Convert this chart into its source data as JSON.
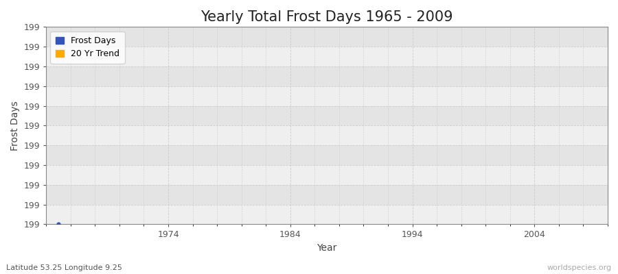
{
  "title": "Yearly Total Frost Days 1965 - 2009",
  "xlabel": "Year",
  "ylabel": "Frost Days",
  "subtitle": "Latitude 53.25 Longitude 9.25",
  "watermark": "worldspecies.org",
  "frost_days_years": [
    1965
  ],
  "frost_days_values": [
    199
  ],
  "trend_years": [],
  "trend_values": [],
  "frost_color": "#3355bb",
  "trend_color": "#ffaa00",
  "xmin": 1964,
  "xmax": 2010,
  "ymin": 199.0,
  "ymax": 199.9,
  "n_yticks": 10,
  "xticks": [
    1974,
    1984,
    1994,
    2004
  ],
  "background_color": "#efefef",
  "stripe_color": "#e4e4e4",
  "grid_color": "#cccccc",
  "title_fontsize": 15,
  "axis_label_fontsize": 10,
  "tick_fontsize": 9,
  "legend_fontsize": 9,
  "subtitle_fontsize": 8,
  "watermark_fontsize": 8
}
